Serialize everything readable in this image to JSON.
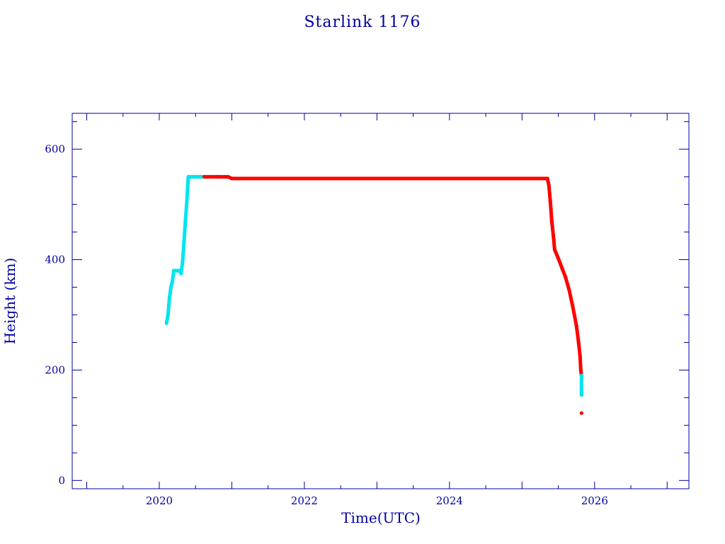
{
  "chart_data": {
    "type": "line",
    "title": "Starlink 1176",
    "xlabel": "Time(UTC)",
    "ylabel": "Height (km)",
    "xlim": [
      2018.8,
      2027.3
    ],
    "ylim": [
      -15,
      665
    ],
    "x_ticks": [
      "2020",
      "2022",
      "2024",
      "2026"
    ],
    "y_ticks": [
      "0",
      "200",
      "400",
      "600"
    ],
    "colors": {
      "axis": "#0000a0",
      "cyan": "#00e5ee",
      "red": "#ff0000"
    },
    "series": [
      {
        "color": "cyan",
        "x": [
          2020.1,
          2020.12,
          2020.14,
          2020.16,
          2020.18,
          2020.2,
          2020.22,
          2020.24,
          2020.26,
          2020.28,
          2020.3,
          2020.32,
          2020.34,
          2020.36,
          2020.38,
          2020.4,
          2020.42,
          2020.44,
          2020.46,
          2020.48,
          2020.5,
          2020.52,
          2020.55,
          2020.58,
          2020.62
        ],
        "y": [
          285,
          300,
          330,
          350,
          360,
          380,
          380,
          380,
          380,
          380,
          375,
          395,
          430,
          470,
          505,
          550,
          550,
          550,
          550,
          550,
          550,
          550,
          550,
          550,
          550
        ]
      },
      {
        "color": "red",
        "x": [
          2020.62,
          2020.8,
          2020.95,
          2021.0,
          2022.0,
          2023.0,
          2024.0,
          2025.0,
          2025.35,
          2025.37,
          2025.39,
          2025.41,
          2025.43,
          2025.45,
          2025.5,
          2025.55,
          2025.6,
          2025.65,
          2025.7,
          2025.75,
          2025.78,
          2025.8,
          2025.81,
          2025.82
        ],
        "y": [
          550,
          550,
          550,
          547,
          547,
          547,
          547,
          547,
          547,
          535,
          505,
          470,
          445,
          418,
          402,
          385,
          368,
          345,
          315,
          280,
          250,
          225,
          200,
          190
        ]
      },
      {
        "color": "cyan",
        "x": [
          2025.82,
          2025.82,
          2025.82
        ],
        "y": [
          190,
          160,
          155
        ]
      },
      {
        "color": "red",
        "x": [
          2025.82
        ],
        "y": [
          122
        ]
      }
    ]
  }
}
